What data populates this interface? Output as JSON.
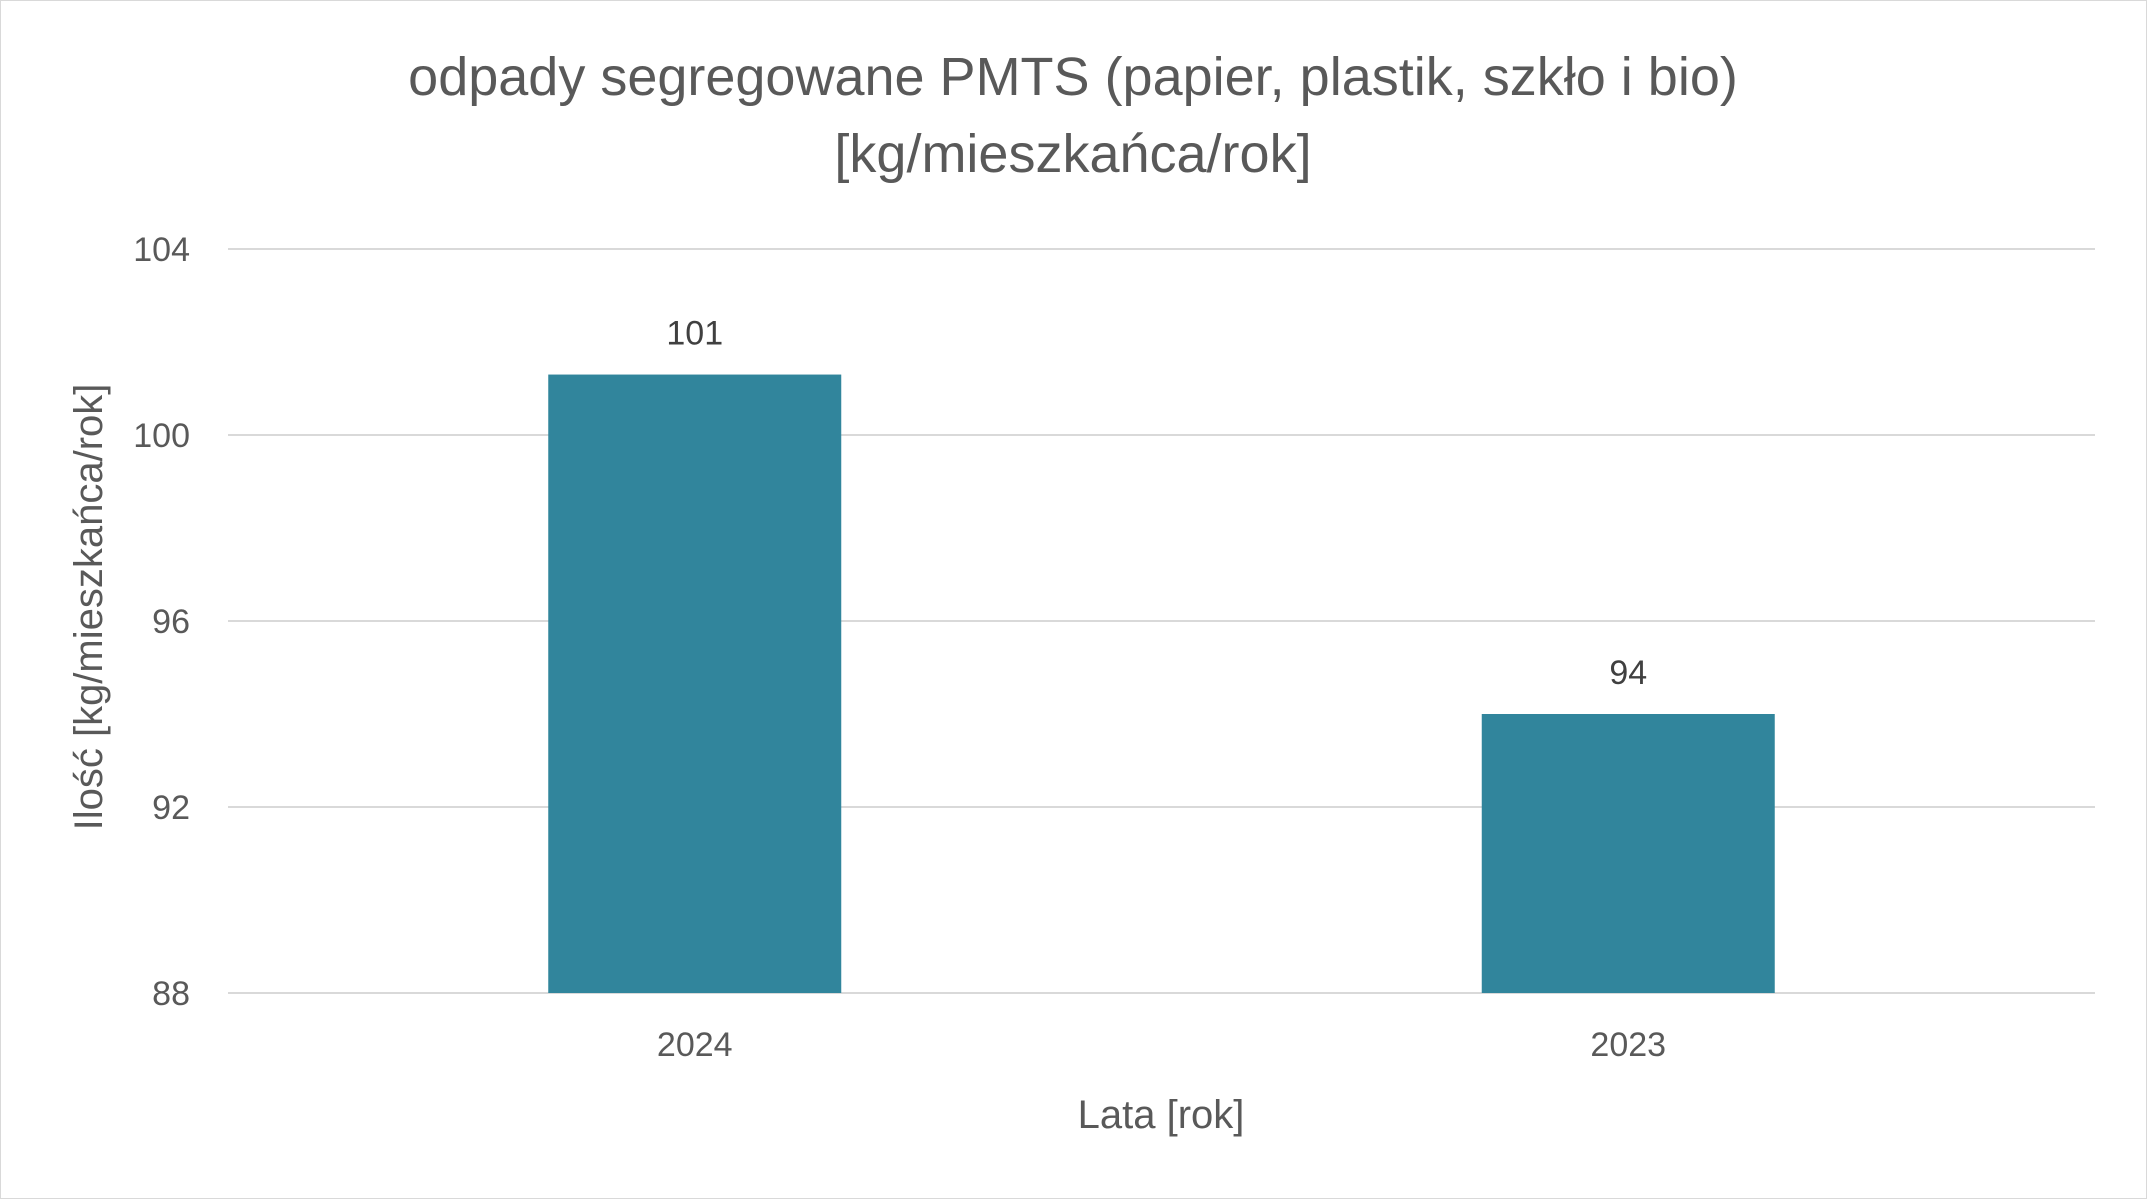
{
  "chart_data": {
    "type": "bar",
    "title_lines": [
      "odpady segregowane PMTS (papier, plastik, szkło i bio)",
      "[kg/mieszkańca/rok]"
    ],
    "xlabel": "Lata [rok]",
    "ylabel": "Ilość [kg/mieszkańca/rok]",
    "categories": [
      "2024",
      "2023"
    ],
    "values": [
      101.3,
      94
    ],
    "data_labels": [
      "101",
      "94"
    ],
    "ylim": [
      88,
      104
    ],
    "yticks": [
      88,
      92,
      96,
      100,
      104
    ],
    "grid": true,
    "legend": "none",
    "bar_color": "#31859C"
  }
}
